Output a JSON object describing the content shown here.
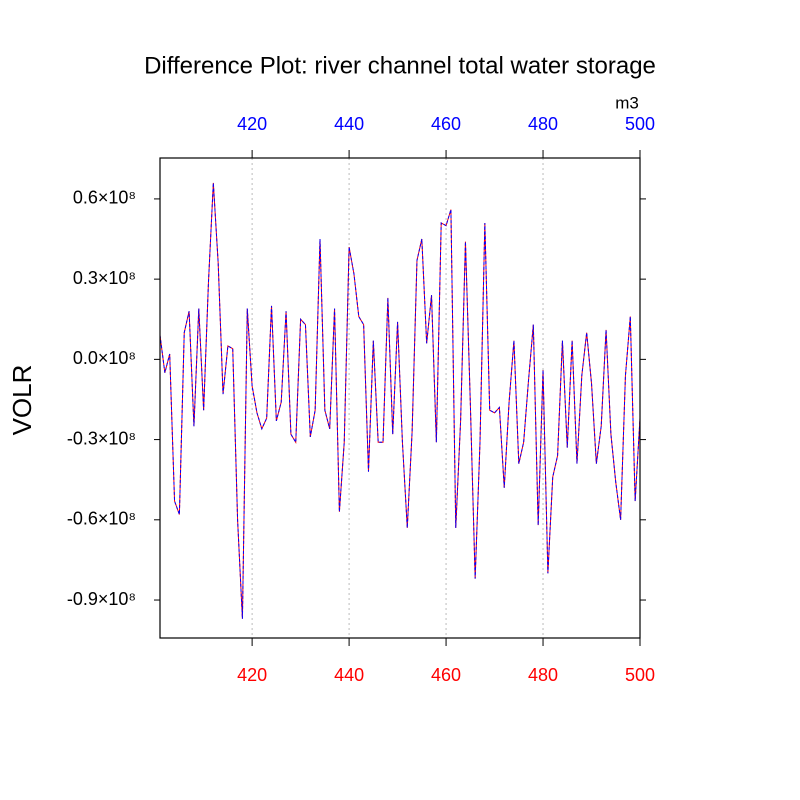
{
  "chart_data": {
    "type": "line",
    "title": "Difference Plot: river channel total water storage",
    "units": "m3",
    "ylabel": "VOLR",
    "x": [
      401,
      402,
      403,
      404,
      405,
      406,
      407,
      408,
      409,
      410,
      411,
      412,
      413,
      414,
      415,
      416,
      417,
      418,
      419,
      420,
      421,
      422,
      423,
      424,
      425,
      426,
      427,
      428,
      429,
      430,
      431,
      432,
      433,
      434,
      435,
      436,
      437,
      438,
      439,
      440,
      441,
      442,
      443,
      444,
      445,
      446,
      447,
      448,
      449,
      450,
      451,
      452,
      453,
      454,
      455,
      456,
      457,
      458,
      459,
      460,
      461,
      462,
      463,
      464,
      465,
      466,
      467,
      468,
      469,
      470,
      471,
      472,
      473,
      474,
      475,
      476,
      477,
      478,
      479,
      480,
      481,
      482,
      483,
      484,
      485,
      486,
      487,
      488,
      489,
      490,
      491,
      492,
      493,
      494,
      495,
      496,
      497,
      498,
      499,
      500
    ],
    "series": [
      {
        "color": "#ff0000",
        "dash": false,
        "values": [
          9000000.0,
          -5000000.0,
          2000000.0,
          -53000000.0,
          -58000000.0,
          10000000.0,
          18000000.0,
          -25000000.0,
          19000000.0,
          -19000000.0,
          29000000.0,
          66000000.0,
          36000000.0,
          -13000000.0,
          5000000.0,
          4000000.0,
          -60000000.0,
          -97000000.0,
          19000000.0,
          -10000000.0,
          -20000000.0,
          -26000000.0,
          -22000000.0,
          20000000.0,
          -23000000.0,
          -16000000.0,
          18000000.0,
          -28000000.0,
          -31000000.0,
          15000000.0,
          13000000.0,
          -29000000.0,
          -19000000.0,
          45000000.0,
          -19000000.0,
          -26000000.0,
          19000000.0,
          -57000000.0,
          -31000000.0,
          42000000.0,
          32000000.0,
          16000000.0,
          13000000.0,
          -42000000.0,
          7000000.0,
          -31000000.0,
          -31000000.0,
          23000000.0,
          -28000000.0,
          14000000.0,
          -31000000.0,
          -63000000.0,
          -27000000.0,
          37000000.0,
          45000000.0,
          6000000.0,
          24000000.0,
          -31000000.0,
          51000000.0,
          50000000.0,
          56000000.0,
          -63000000.0,
          -23000000.0,
          44000000.0,
          -16000000.0,
          -82000000.0,
          -31000000.0,
          51000000.0,
          -19000000.0,
          -20000000.0,
          -18000000.0,
          -48000000.0,
          -16000000.0,
          7000000.0,
          -39000000.0,
          -31000000.0,
          -8000000.0,
          13000000.0,
          -62000000.0,
          -4000000.0,
          -80000000.0,
          -44000000.0,
          -36000000.0,
          7000000.0,
          -33000000.0,
          7000000.0,
          -39000000.0,
          -6000000.0,
          10000000.0,
          -9000000.0,
          -39000000.0,
          -25000000.0,
          11000000.0,
          -28000000.0,
          -46000000.0,
          -60000000.0,
          -6000000.0,
          16000000.0,
          -53000000.0,
          -22000000.0
        ]
      },
      {
        "color": "#0000ff",
        "dash": true,
        "values": [
          9000000.0,
          -5000000.0,
          2000000.0,
          -53000000.0,
          -58000000.0,
          10000000.0,
          18000000.0,
          -25000000.0,
          19000000.0,
          -19000000.0,
          29000000.0,
          66000000.0,
          36000000.0,
          -13000000.0,
          5000000.0,
          4000000.0,
          -60000000.0,
          -97000000.0,
          19000000.0,
          -10000000.0,
          -20000000.0,
          -26000000.0,
          -22000000.0,
          20000000.0,
          -23000000.0,
          -16000000.0,
          18000000.0,
          -28000000.0,
          -31000000.0,
          15000000.0,
          13000000.0,
          -29000000.0,
          -19000000.0,
          45000000.0,
          -19000000.0,
          -26000000.0,
          19000000.0,
          -57000000.0,
          -31000000.0,
          42000000.0,
          32000000.0,
          16000000.0,
          13000000.0,
          -42000000.0,
          7000000.0,
          -31000000.0,
          -31000000.0,
          23000000.0,
          -28000000.0,
          14000000.0,
          -31000000.0,
          -63000000.0,
          -27000000.0,
          37000000.0,
          45000000.0,
          6000000.0,
          24000000.0,
          -31000000.0,
          51000000.0,
          50000000.0,
          56000000.0,
          -63000000.0,
          -23000000.0,
          44000000.0,
          -16000000.0,
          -82000000.0,
          -31000000.0,
          51000000.0,
          -19000000.0,
          -20000000.0,
          -18000000.0,
          -48000000.0,
          -16000000.0,
          7000000.0,
          -39000000.0,
          -31000000.0,
          -8000000.0,
          13000000.0,
          -62000000.0,
          -4000000.0,
          -80000000.0,
          -44000000.0,
          -36000000.0,
          7000000.0,
          -33000000.0,
          7000000.0,
          -39000000.0,
          -6000000.0,
          10000000.0,
          -9000000.0,
          -39000000.0,
          -25000000.0,
          11000000.0,
          -28000000.0,
          -46000000.0,
          -60000000.0,
          -6000000.0,
          16000000.0,
          -53000000.0,
          -22000000.0
        ]
      }
    ],
    "xlim": [
      401,
      500
    ],
    "xticks": [
      420,
      440,
      460,
      480,
      500
    ],
    "xtick_color": "#ff0000",
    "x2ticks": [
      420,
      440,
      460,
      480,
      500
    ],
    "x2tick_color": "#0000ff",
    "ylim": [
      -104200000.0,
      75300000.0
    ],
    "yticks": [
      {
        "value": 60000000.0,
        "label": "0.6×10⁸"
      },
      {
        "value": 30000000.0,
        "label": "0.3×10⁸"
      },
      {
        "value": 0,
        "label": "0.0×10⁸"
      },
      {
        "value": -30000000.0,
        "label": "-0.3×10⁸"
      },
      {
        "value": -60000000.0,
        "label": "-0.6×10⁸"
      },
      {
        "value": -90000000.0,
        "label": "-0.9×10⁸"
      }
    ],
    "grid": true
  }
}
